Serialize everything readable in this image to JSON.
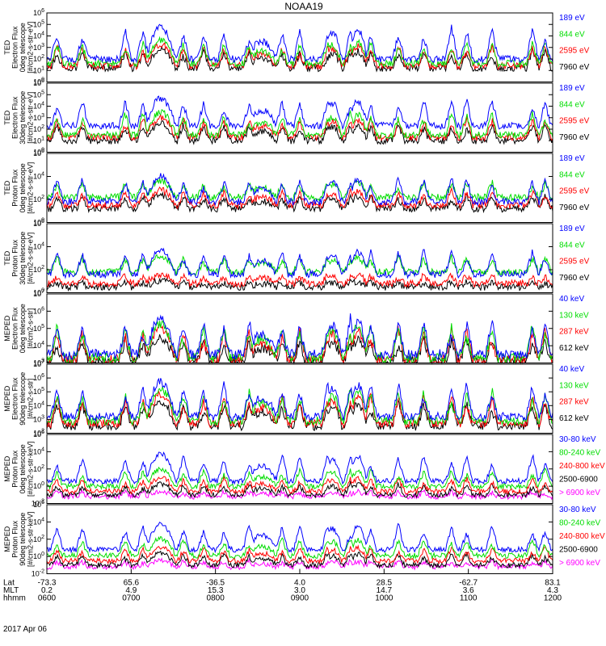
{
  "chart_data": {
    "type": "line",
    "title": "NOAA19",
    "date_label": "2017 Apr 06",
    "colors": {
      "blue": "#0000ff",
      "red": "#ff0000",
      "green": "#00dd00",
      "black": "#000000",
      "magenta": "#ff00ff"
    },
    "x_axis": {
      "row_labels": [
        "Lat",
        "MLT",
        "hhmm"
      ],
      "ticks": [
        {
          "lat": "-73.3",
          "mlt": "0.2",
          "hhmm": "0600"
        },
        {
          "lat": "65.6",
          "mlt": "4.9",
          "hhmm": "0700"
        },
        {
          "lat": "-36.5",
          "mlt": "15.3",
          "hhmm": "0800"
        },
        {
          "lat": "4.0",
          "mlt": "3.0",
          "hhmm": "0900"
        },
        {
          "lat": "28.5",
          "mlt": "14.7",
          "hhmm": "1000"
        },
        {
          "lat": "-62.7",
          "mlt": "3.6",
          "hhmm": "1100"
        },
        {
          "lat": "83.1",
          "mlt": "4.3",
          "hhmm": "1200"
        }
      ]
    },
    "passes": [
      {
        "x": 0.225,
        "w": 0.03,
        "amp": 1.0
      },
      {
        "x": 0.425,
        "w": 0.03,
        "amp": 0.55
      },
      {
        "x": 0.565,
        "w": 0.018,
        "amp": 0.8
      },
      {
        "x": 0.615,
        "w": 0.018,
        "amp": 0.9
      }
    ],
    "spikes": [
      0.02,
      0.07,
      0.155,
      0.19,
      0.27,
      0.31,
      0.35,
      0.4,
      0.465,
      0.5,
      0.555,
      0.6,
      0.64,
      0.695,
      0.745,
      0.8,
      0.83,
      0.88,
      0.96,
      0.985
    ],
    "panels": [
      {
        "id": "ted-e-0",
        "ylabel": [
          "TED",
          "Electron Flux",
          "0deg telescope",
          "[#/cm2-s-str-eV]"
        ],
        "yticks": [
          "10^0",
          "10^1",
          "10^2",
          "10^3",
          "10^4",
          "10^5",
          "10^6"
        ],
        "ylog": [
          0,
          6
        ],
        "series": [
          {
            "name": "7960 eV",
            "color": "black",
            "base": 1.2,
            "peak": 2.8
          },
          {
            "name": "2595 eV",
            "color": "red",
            "base": 1.4,
            "peak": 3.3
          },
          {
            "name": "844 eV",
            "color": "green",
            "base": 1.6,
            "peak": 3.6
          },
          {
            "name": "189 eV",
            "color": "blue",
            "base": 2.0,
            "peak": 4.8
          }
        ]
      },
      {
        "id": "ted-e-30",
        "ylabel": [
          "TED",
          "Electron Flux",
          "30deg telescope",
          "[#/cm2-s-str-eV]"
        ],
        "yticks": [
          "10^0",
          "10^1",
          "10^2",
          "10^3",
          "10^4",
          "10^5",
          "10^6"
        ],
        "ylog": [
          0,
          6
        ],
        "series": [
          {
            "name": "7960 eV",
            "color": "black",
            "base": 1.0,
            "peak": 2.5
          },
          {
            "name": "2595 eV",
            "color": "red",
            "base": 1.3,
            "peak": 3.0
          },
          {
            "name": "844 eV",
            "color": "green",
            "base": 1.5,
            "peak": 3.5
          },
          {
            "name": "189 eV",
            "color": "blue",
            "base": 2.3,
            "peak": 4.7
          }
        ]
      },
      {
        "id": "ted-p-0",
        "ylabel": [
          "TED",
          "Proton Flux",
          "0deg telescope",
          "[#/cm2-s-str-eV]"
        ],
        "yticks": [
          "10^0",
          "10^2",
          "10^4",
          "10^6"
        ],
        "ylog": [
          0,
          6
        ],
        "series": [
          {
            "name": "7960 eV",
            "color": "black",
            "base": 1.2,
            "peak": 2.4
          },
          {
            "name": "2595 eV",
            "color": "red",
            "base": 1.5,
            "peak": 2.8
          },
          {
            "name": "844 eV",
            "color": "green",
            "base": 2.2,
            "peak": 3.6
          },
          {
            "name": "189 eV",
            "color": "blue",
            "base": 1.8,
            "peak": 4.0
          }
        ]
      },
      {
        "id": "ted-p-30",
        "ylabel": [
          "TED",
          "Proton Flux",
          "30deg telescope",
          "[#/cm2-s-str-eV]"
        ],
        "yticks": [
          "10^0",
          "10^2",
          "10^4",
          "10^6"
        ],
        "ylog": [
          0,
          6
        ],
        "series": [
          {
            "name": "7960 eV",
            "color": "black",
            "base": 0.5,
            "peak": 1.0
          },
          {
            "name": "2595 eV",
            "color": "red",
            "base": 0.8,
            "peak": 1.6
          },
          {
            "name": "844 eV",
            "color": "green",
            "base": 1.8,
            "peak": 3.2
          },
          {
            "name": "189 eV",
            "color": "blue",
            "base": 1.6,
            "peak": 3.8
          }
        ]
      },
      {
        "id": "meped-e-0",
        "ylabel": [
          "MEPED",
          "Electron Flux",
          "0deg telescope",
          "[#/cm2-s-str]"
        ],
        "yticks": [
          "10^3",
          "10^4",
          "10^5",
          "10^6",
          "10^7"
        ],
        "ylog": [
          3,
          7
        ],
        "series": [
          {
            "name": "612 keV",
            "color": "black",
            "base": 3.1,
            "peak": 4.5
          },
          {
            "name": "287 keV",
            "color": "red",
            "base": 3.2,
            "peak": 5.0
          },
          {
            "name": "130 keV",
            "color": "green",
            "base": 3.3,
            "peak": 5.3
          },
          {
            "name": "40 keV",
            "color": "blue",
            "base": 3.5,
            "peak": 5.6
          }
        ]
      },
      {
        "id": "meped-e-90",
        "ylabel": [
          "MEPED",
          "Electron Flux",
          "90deg telescope",
          "[#/cm2-s-str]"
        ],
        "yticks": [
          "10^2",
          "10^3",
          "10^4",
          "10^5",
          "10^6",
          "10^7"
        ],
        "ylog": [
          2,
          7
        ],
        "series": [
          {
            "name": "612 keV",
            "color": "black",
            "base": 2.5,
            "peak": 4.3
          },
          {
            "name": "287 keV",
            "color": "red",
            "base": 2.7,
            "peak": 4.8
          },
          {
            "name": "130 keV",
            "color": "green",
            "base": 2.9,
            "peak": 5.2
          },
          {
            "name": "40 keV",
            "color": "blue",
            "base": 3.2,
            "peak": 5.7
          }
        ]
      },
      {
        "id": "meped-p-0",
        "ylabel": [
          "MEPED",
          "Proton Flux",
          "0deg telescope",
          "[#/cm2-s-str-keV]"
        ],
        "yticks": [
          "10^-2",
          "10^0",
          "10^2",
          "10^4",
          "10^6"
        ],
        "ylog": [
          -2,
          6
        ],
        "series": [
          {
            "name": "> 6900 keV",
            "color": "magenta",
            "base": -1.2,
            "peak": -0.6
          },
          {
            "name": "2500-6900",
            "color": "black",
            "base": -1.0,
            "peak": 0.3
          },
          {
            "name": "240-800 keV",
            "color": "red",
            "base": -0.6,
            "peak": 1.0
          },
          {
            "name": "80-240 keV",
            "color": "green",
            "base": 0.0,
            "peak": 2.0
          },
          {
            "name": "30-80 keV",
            "color": "blue",
            "base": 0.6,
            "peak": 3.8
          }
        ]
      },
      {
        "id": "meped-p-90",
        "ylabel": [
          "MEPED",
          "Proton Flux",
          "90deg telescope",
          "[#/cm2-s-str-keV]"
        ],
        "yticks": [
          "10^-2",
          "10^0",
          "10^2",
          "10^4",
          "10^6"
        ],
        "ylog": [
          -2,
          6
        ],
        "series": [
          {
            "name": "> 6900 keV",
            "color": "magenta",
            "base": -1.2,
            "peak": -0.5
          },
          {
            "name": "2500-6900",
            "color": "black",
            "base": -1.0,
            "peak": 0.4
          },
          {
            "name": "240-800 keV",
            "color": "red",
            "base": -0.5,
            "peak": 1.1
          },
          {
            "name": "80-240 keV",
            "color": "green",
            "base": 0.1,
            "peak": 2.1
          },
          {
            "name": "30-80 keV",
            "color": "blue",
            "base": 0.8,
            "peak": 3.8
          }
        ]
      }
    ]
  }
}
